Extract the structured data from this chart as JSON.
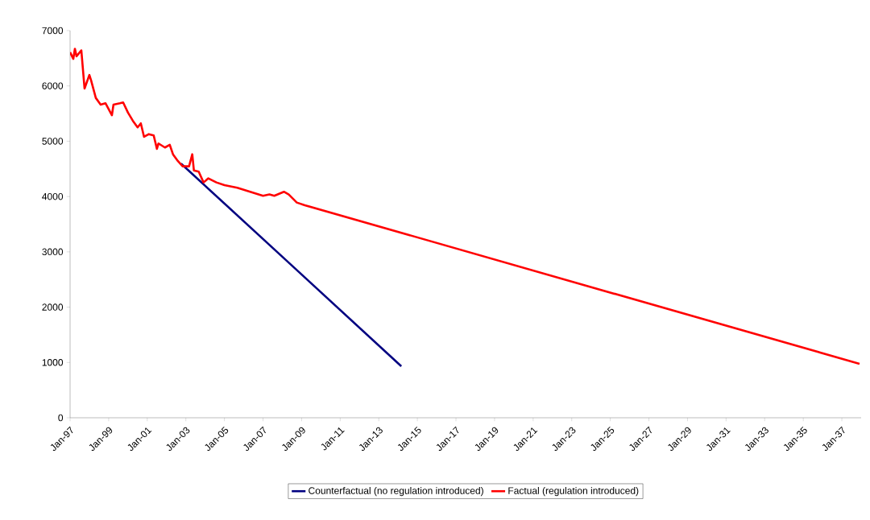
{
  "chart_data": {
    "type": "line",
    "xlim": [
      "1997-01",
      "2037-12"
    ],
    "xticks": [
      {
        "value": "1997-01",
        "label": "Jan-97"
      },
      {
        "value": "1999-01",
        "label": "Jan-99"
      },
      {
        "value": "2001-01",
        "label": "Jan-01"
      },
      {
        "value": "2003-01",
        "label": "Jan-03"
      },
      {
        "value": "2005-01",
        "label": "Jan-05"
      },
      {
        "value": "2007-01",
        "label": "Jan-07"
      },
      {
        "value": "2009-01",
        "label": "Jan-09"
      },
      {
        "value": "2011-01",
        "label": "Jan-11"
      },
      {
        "value": "2013-01",
        "label": "Jan-13"
      },
      {
        "value": "2015-01",
        "label": "Jan-15"
      },
      {
        "value": "2017-01",
        "label": "Jan-17"
      },
      {
        "value": "2019-01",
        "label": "Jan-19"
      },
      {
        "value": "2021-01",
        "label": "Jan-21"
      },
      {
        "value": "2023-01",
        "label": "Jan-23"
      },
      {
        "value": "2025-01",
        "label": "Jan-25"
      },
      {
        "value": "2027-01",
        "label": "Jan-27"
      },
      {
        "value": "2029-01",
        "label": "Jan-29"
      },
      {
        "value": "2031-01",
        "label": "Jan-31"
      },
      {
        "value": "2033-01",
        "label": "Jan-33"
      },
      {
        "value": "2035-01",
        "label": "Jan-35"
      },
      {
        "value": "2037-01",
        "label": "Jan-37"
      }
    ],
    "ylim": [
      0,
      7000
    ],
    "yticks": [
      0,
      1000,
      2000,
      3000,
      4000,
      5000,
      6000,
      7000
    ],
    "grid": false,
    "legend": "bottom",
    "series": [
      {
        "name": "Counterfactual (no regulation introduced)",
        "color": "#000080",
        "x": [
          "2002-10",
          "2008-06",
          "2014-03"
        ],
        "values": [
          4595,
          2778,
          932
        ]
      },
      {
        "name": "Factual (regulation introduced)",
        "color": "#ff0000",
        "x": [
          "1997-01",
          "1997-03",
          "1997-04",
          "1997-05",
          "1997-08",
          "1997-10",
          "1998-01",
          "1998-02",
          "1998-05",
          "1998-08",
          "1998-11",
          "1999-03",
          "1999-04",
          "1999-08",
          "1999-10",
          "2000-01",
          "2000-04",
          "2000-07",
          "2000-09",
          "2000-11",
          "2001-02",
          "2001-05",
          "2001-07",
          "2001-08",
          "2001-12",
          "2002-03",
          "2002-05",
          "2002-08",
          "2002-11",
          "2003-03",
          "2003-05",
          "2003-06",
          "2003-09",
          "2003-12",
          "2004-03",
          "2004-08",
          "2005-01",
          "2005-09",
          "2006-05",
          "2007-01",
          "2007-05",
          "2007-08",
          "2008-02",
          "2008-05",
          "2008-10",
          "2009-03",
          "2037-12"
        ],
        "values": [
          6608,
          6488,
          6672,
          6536,
          6642,
          5953,
          6197,
          6108,
          5783,
          5662,
          5687,
          5469,
          5662,
          5687,
          5702,
          5517,
          5371,
          5250,
          5323,
          5080,
          5128,
          5105,
          4862,
          4959,
          4886,
          4934,
          4764,
          4643,
          4546,
          4546,
          4764,
          4473,
          4450,
          4255,
          4328,
          4255,
          4206,
          4158,
          4086,
          4013,
          4037,
          4013,
          4086,
          4037,
          3891,
          3843,
          975
        ]
      }
    ]
  }
}
